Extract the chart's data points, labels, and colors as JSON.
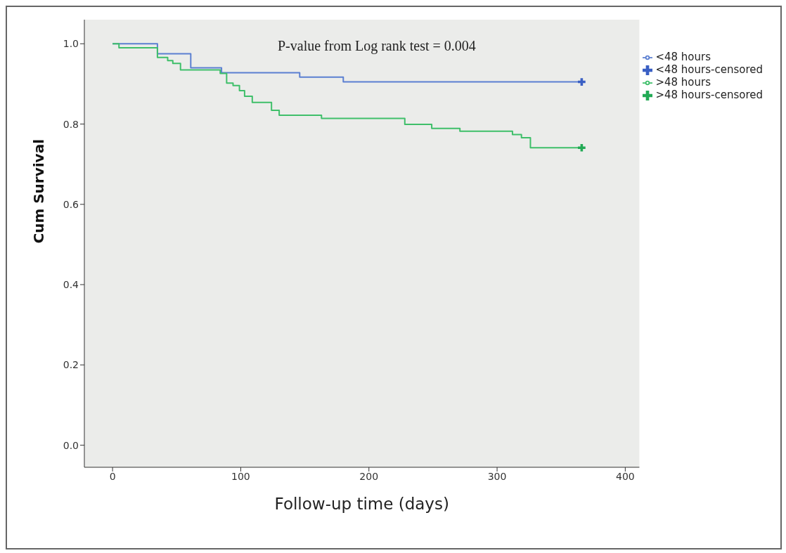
{
  "chart_data": {
    "type": "step",
    "xlabel": "Follow-up time (days)",
    "ylabel": "Cum Survival",
    "annotations": [
      "P-value from Log rank test = 0.004"
    ],
    "xlim": [
      -22,
      411
    ],
    "xticks": [
      0,
      100,
      200,
      300,
      400
    ],
    "ylim": [
      -0.055,
      1.06
    ],
    "yticks": [
      {
        "value": 0,
        "label": "0.0"
      },
      {
        "value": 0.2,
        "label": "0.2"
      },
      {
        "value": 0.4,
        "label": "0.4"
      },
      {
        "value": 0.6,
        "label": "0.6"
      },
      {
        "value": 0.8,
        "label": "0.8"
      },
      {
        "value": 1,
        "label": "1.0"
      }
    ],
    "grid": false,
    "legend": "right",
    "line_style": "solid",
    "series": [
      {
        "name": "<48 hours",
        "color": "#5b7fd1",
        "x": [
          0,
          35,
          61,
          85,
          146,
          180,
          366
        ],
        "values": [
          1.0,
          0.975,
          0.94,
          0.928,
          0.917,
          0.905,
          0.905
        ]
      },
      {
        "name": ">48 hours",
        "color": "#3fbf6a",
        "x": [
          0,
          5,
          35,
          43,
          47,
          53,
          84,
          89,
          94,
          99,
          103,
          109,
          124,
          130,
          163,
          228,
          249,
          271,
          312,
          319,
          326,
          366
        ],
        "values": [
          1.0,
          0.99,
          0.966,
          0.958,
          0.951,
          0.935,
          0.926,
          0.902,
          0.896,
          0.883,
          0.869,
          0.854,
          0.834,
          0.822,
          0.814,
          0.799,
          0.789,
          0.782,
          0.774,
          0.766,
          0.741,
          0.741
        ]
      },
      {
        "name": "<48 hours-censored",
        "type": "scatter",
        "marker": "cross",
        "color": "#3a5fc4",
        "x": [
          366
        ],
        "values": [
          0.905
        ]
      },
      {
        "name": ">48 hours-censored",
        "type": "scatter",
        "marker": "cross",
        "color": "#22aa55",
        "x": [
          366
        ],
        "values": [
          0.741
        ]
      }
    ]
  }
}
